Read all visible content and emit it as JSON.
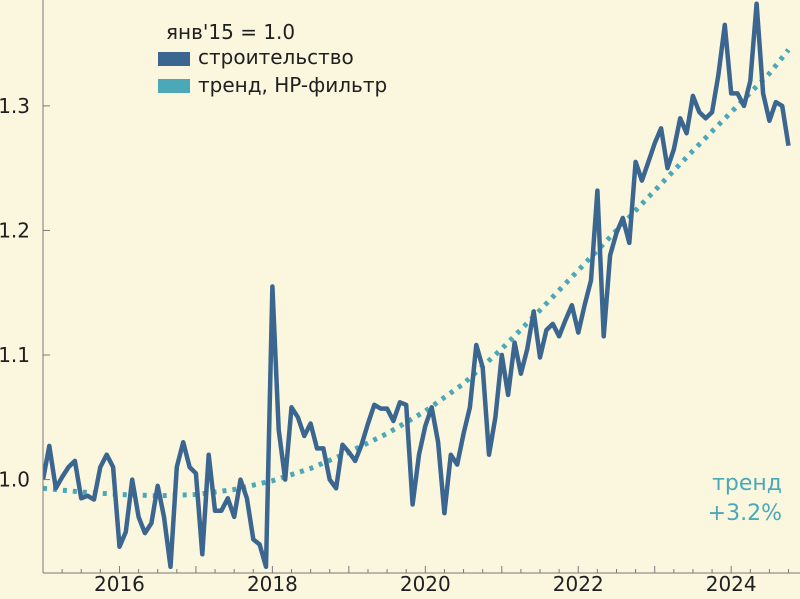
{
  "chart_data": {
    "type": "line",
    "title": "",
    "xlabel": "",
    "ylabel": "",
    "x_ticks": [
      "2016",
      "2018",
      "2020",
      "2022",
      "2024"
    ],
    "y_ticks": [
      "1.0",
      "1.1",
      "1.2",
      "1.3"
    ],
    "xlim": [
      2015.0,
      2024.9
    ],
    "ylim": [
      0.925,
      1.385
    ],
    "grid": false,
    "legend_position": "top-left",
    "legend_title": "янв'15 = 1.0",
    "series": [
      {
        "name": "строительство",
        "style": "solid",
        "color": "#3B6690",
        "x": [
          2015.0,
          2015.083,
          2015.167,
          2015.25,
          2015.333,
          2015.417,
          2015.5,
          2015.583,
          2015.667,
          2015.75,
          2015.833,
          2015.917,
          2016.0,
          2016.083,
          2016.167,
          2016.25,
          2016.333,
          2016.417,
          2016.5,
          2016.583,
          2016.667,
          2016.75,
          2016.833,
          2016.917,
          2017.0,
          2017.083,
          2017.167,
          2017.25,
          2017.333,
          2017.417,
          2017.5,
          2017.583,
          2017.667,
          2017.75,
          2017.833,
          2017.917,
          2018.0,
          2018.083,
          2018.167,
          2018.25,
          2018.333,
          2018.417,
          2018.5,
          2018.583,
          2018.667,
          2018.75,
          2018.833,
          2018.917,
          2019.0,
          2019.083,
          2019.167,
          2019.25,
          2019.333,
          2019.417,
          2019.5,
          2019.583,
          2019.667,
          2019.75,
          2019.833,
          2019.917,
          2020.0,
          2020.083,
          2020.167,
          2020.25,
          2020.333,
          2020.417,
          2020.5,
          2020.583,
          2020.667,
          2020.75,
          2020.833,
          2020.917,
          2021.0,
          2021.083,
          2021.167,
          2021.25,
          2021.333,
          2021.417,
          2021.5,
          2021.583,
          2021.667,
          2021.75,
          2021.833,
          2021.917,
          2022.0,
          2022.083,
          2022.167,
          2022.25,
          2022.333,
          2022.417,
          2022.5,
          2022.583,
          2022.667,
          2022.75,
          2022.833,
          2022.917,
          2023.0,
          2023.083,
          2023.167,
          2023.25,
          2023.333,
          2023.417,
          2023.5,
          2023.583,
          2023.667,
          2023.75,
          2023.833,
          2023.917,
          2024.0,
          2024.083,
          2024.167,
          2024.25,
          2024.333,
          2024.417,
          2024.5,
          2024.583,
          2024.667,
          2024.75
        ],
        "values": [
          1.0,
          1.027,
          0.993,
          1.002,
          1.01,
          1.015,
          0.985,
          0.987,
          0.984,
          1.01,
          1.02,
          1.01,
          0.946,
          0.958,
          1.0,
          0.97,
          0.957,
          0.965,
          0.995,
          0.97,
          0.93,
          1.01,
          1.03,
          1.01,
          1.005,
          0.94,
          1.02,
          0.975,
          0.975,
          0.985,
          0.97,
          1.0,
          0.985,
          0.952,
          0.948,
          0.93,
          1.155,
          1.04,
          1.0,
          1.058,
          1.05,
          1.035,
          1.045,
          1.025,
          1.025,
          1.0,
          0.993,
          1.028,
          1.022,
          1.015,
          1.028,
          1.045,
          1.06,
          1.057,
          1.057,
          1.047,
          1.062,
          1.06,
          0.98,
          1.02,
          1.043,
          1.058,
          1.03,
          0.973,
          1.02,
          1.012,
          1.037,
          1.058,
          1.108,
          1.09,
          1.02,
          1.05,
          1.1,
          1.068,
          1.11,
          1.085,
          1.105,
          1.135,
          1.098,
          1.12,
          1.125,
          1.115,
          1.128,
          1.14,
          1.118,
          1.14,
          1.16,
          1.232,
          1.115,
          1.18,
          1.198,
          1.21,
          1.19,
          1.255,
          1.24,
          1.255,
          1.27,
          1.282,
          1.25,
          1.265,
          1.29,
          1.278,
          1.308,
          1.295,
          1.29,
          1.295,
          1.325,
          1.365,
          1.31,
          1.31,
          1.3,
          1.32,
          1.382,
          1.31,
          1.288,
          1.303,
          1.3,
          1.268
        ]
      },
      {
        "name": "тренд, HP-фильтр",
        "style": "dotted",
        "color": "#4AA8B8",
        "x": [
          2015.0,
          2015.5,
          2016.0,
          2016.5,
          2017.0,
          2017.5,
          2018.0,
          2018.5,
          2019.0,
          2019.5,
          2020.0,
          2020.5,
          2021.0,
          2021.5,
          2022.0,
          2022.5,
          2023.0,
          2023.5,
          2024.0,
          2024.5,
          2024.75
        ],
        "values": [
          0.993,
          0.99,
          0.988,
          0.987,
          0.988,
          0.992,
          0.999,
          1.009,
          1.022,
          1.037,
          1.055,
          1.077,
          1.105,
          1.136,
          1.168,
          1.2,
          1.232,
          1.264,
          1.295,
          1.326,
          1.345
        ]
      }
    ],
    "annotations": [
      {
        "text": "тренд",
        "color": "#4AA8B8"
      },
      {
        "text": "+3.2%",
        "color": "#4AA8B8"
      }
    ]
  }
}
